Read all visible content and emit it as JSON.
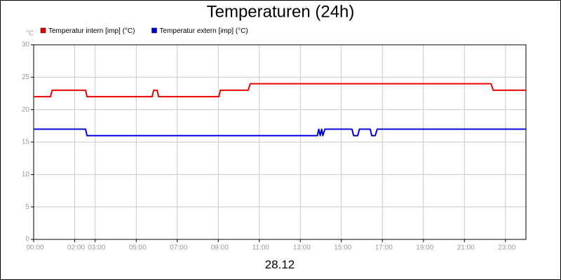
{
  "chart_data": {
    "type": "line",
    "title": "Temperaturen (24h)",
    "ylabel": "°C",
    "xlabel": "28.12",
    "legend": "top-left",
    "grid": true,
    "xlim": [
      0,
      24
    ],
    "xticks": [
      {
        "value": 0,
        "label": "00:00"
      },
      {
        "value": 2,
        "label": "02:00"
      },
      {
        "value": 3,
        "label": "03:00"
      },
      {
        "value": 5,
        "label": "05:00"
      },
      {
        "value": 7,
        "label": "07:00"
      },
      {
        "value": 9,
        "label": "09:00"
      },
      {
        "value": 11,
        "label": "11:00"
      },
      {
        "value": 13,
        "label": "13:00"
      },
      {
        "value": 15,
        "label": "15:00"
      },
      {
        "value": 17,
        "label": "17:00"
      },
      {
        "value": 19,
        "label": "19:00"
      },
      {
        "value": 21,
        "label": "21:00"
      },
      {
        "value": 23,
        "label": "23:00"
      }
    ],
    "ylim": [
      0,
      30
    ],
    "yticks": [
      0,
      5,
      10,
      15,
      20,
      25,
      30
    ],
    "series": [
      {
        "name": "Temperatur intern [imp] (°C)",
        "color": "#ee0000",
        "x": [
          0,
          0.82,
          0.9,
          2.53,
          2.6,
          5.78,
          5.85,
          6.02,
          6.09,
          9.03,
          9.1,
          10.46,
          10.56,
          22.3,
          22.4,
          24
        ],
        "values": [
          22,
          22,
          23,
          23,
          22,
          22,
          23,
          23,
          22,
          22,
          23,
          23,
          24,
          24,
          23,
          23
        ]
      },
      {
        "name": "Temperatur extern [imp] (°C)",
        "color": "#0000dd",
        "x": [
          0,
          2.53,
          2.6,
          13.83,
          13.9,
          13.97,
          14.04,
          14.1,
          14.2,
          15.52,
          15.6,
          15.8,
          15.88,
          16.41,
          16.48,
          16.65,
          16.75,
          24
        ],
        "values": [
          17,
          17,
          16,
          16,
          17,
          16,
          17,
          16,
          17,
          17,
          16,
          16,
          17,
          17,
          16,
          16,
          17,
          17
        ]
      }
    ]
  }
}
